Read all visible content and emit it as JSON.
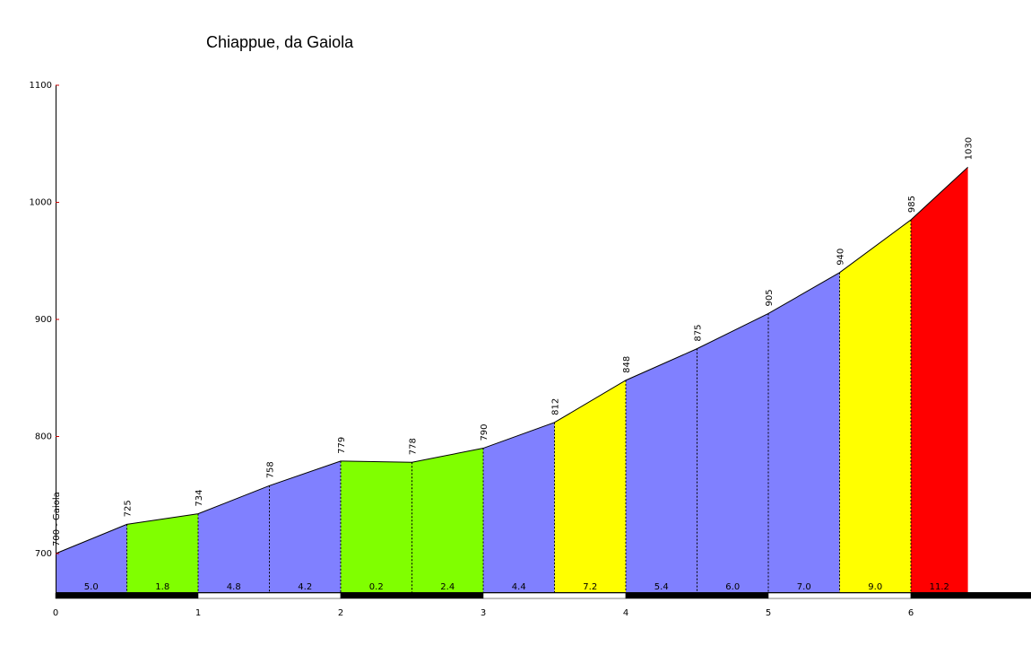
{
  "chart_data": {
    "type": "area",
    "title": "Chiappue, da Gaiola",
    "xlabel": "",
    "ylabel": "",
    "xlim": [
      0,
      6.9
    ],
    "ylim": [
      660,
      1100
    ],
    "y_ticks": [
      700,
      800,
      900,
      1000,
      1100
    ],
    "x_ticks": [
      0,
      1,
      2,
      3,
      4,
      5,
      6
    ],
    "grid": false,
    "points": [
      {
        "x": 0.0,
        "y": 700,
        "label": "700 - Gaiola"
      },
      {
        "x": 0.5,
        "y": 725,
        "label": "725"
      },
      {
        "x": 1.0,
        "y": 734,
        "label": "734"
      },
      {
        "x": 1.5,
        "y": 758,
        "label": "758"
      },
      {
        "x": 2.0,
        "y": 779,
        "label": "779"
      },
      {
        "x": 2.5,
        "y": 778,
        "label": "778"
      },
      {
        "x": 3.0,
        "y": 790,
        "label": "790"
      },
      {
        "x": 3.5,
        "y": 812,
        "label": "812"
      },
      {
        "x": 4.0,
        "y": 848,
        "label": "848"
      },
      {
        "x": 4.5,
        "y": 875,
        "label": "875"
      },
      {
        "x": 5.0,
        "y": 905,
        "label": "905"
      },
      {
        "x": 5.5,
        "y": 940,
        "label": "940"
      },
      {
        "x": 6.0,
        "y": 985,
        "label": "985"
      },
      {
        "x": 6.4,
        "y": 1030,
        "label": "1030"
      }
    ],
    "segments": [
      {
        "gradient": "5.0",
        "color": "#8080ff"
      },
      {
        "gradient": "1.8",
        "color": "#80ff00"
      },
      {
        "gradient": "4.8",
        "color": "#8080ff"
      },
      {
        "gradient": "4.2",
        "color": "#8080ff"
      },
      {
        "gradient": "0.2",
        "color": "#80ff00"
      },
      {
        "gradient": "2.4",
        "color": "#80ff00"
      },
      {
        "gradient": "4.4",
        "color": "#8080ff"
      },
      {
        "gradient": "7.2",
        "color": "#ffff00"
      },
      {
        "gradient": "5.4",
        "color": "#8080ff"
      },
      {
        "gradient": "6.0",
        "color": "#8080ff"
      },
      {
        "gradient": "7.0",
        "color": "#8080ff"
      },
      {
        "gradient": "9.0",
        "color": "#ffff00"
      },
      {
        "gradient": "11.2",
        "color": "#ff0000"
      }
    ]
  }
}
